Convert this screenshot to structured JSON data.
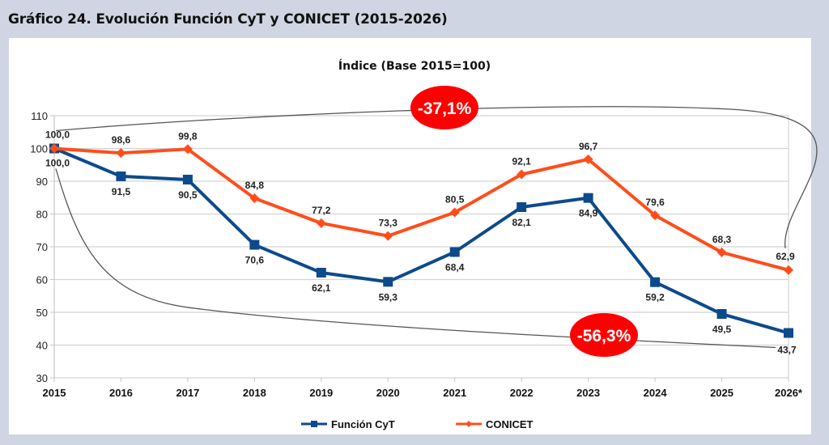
{
  "figure_title": "Gráfico 24. Evolución Función CyT y CONICET (2015-2026)",
  "chart_data": {
    "type": "line",
    "title": "Índice (Base 2015=100)",
    "xlabel": "",
    "ylabel": "",
    "categories": [
      "2015",
      "2016",
      "2017",
      "2018",
      "2019",
      "2020",
      "2021",
      "2022",
      "2023",
      "2024",
      "2025",
      "2026*"
    ],
    "ylim": [
      30,
      110
    ],
    "yticks": [
      30,
      40,
      50,
      60,
      70,
      80,
      90,
      100,
      110
    ],
    "grid": true,
    "legend_position": "bottom",
    "series": [
      {
        "name": "Función CyT",
        "color": "#0d4a8c",
        "marker": "square",
        "values": [
          100.0,
          91.5,
          90.5,
          70.6,
          62.1,
          59.3,
          68.4,
          82.1,
          84.9,
          59.2,
          49.5,
          43.7
        ],
        "labels": [
          "100,0",
          "91,5",
          "90,5",
          "70,6",
          "62,1",
          "59,3",
          "68,4",
          "82,1",
          "84,9",
          "59,2",
          "49,5",
          "43,7"
        ],
        "label_position": "below"
      },
      {
        "name": "CONICET",
        "color": "#ff4d1a",
        "marker": "diamond",
        "values": [
          100.0,
          98.6,
          99.8,
          84.8,
          77.2,
          73.3,
          80.5,
          92.1,
          96.7,
          79.6,
          68.3,
          62.9
        ],
        "labels": [
          "100,0",
          "98,6",
          "99,8",
          "84,8",
          "77,2",
          "73,3",
          "80,5",
          "92,1",
          "96,7",
          "79,6",
          "68,3",
          "62,9"
        ],
        "label_position": "above"
      }
    ],
    "annotations": [
      {
        "text": "-37,1%",
        "series": "CONICET",
        "from": "2015",
        "to": "2026*",
        "color": "#ff0000"
      },
      {
        "text": "-56,3%",
        "series": "Función CyT",
        "from": "2015",
        "to": "2026*",
        "color": "#ff0000"
      }
    ]
  }
}
